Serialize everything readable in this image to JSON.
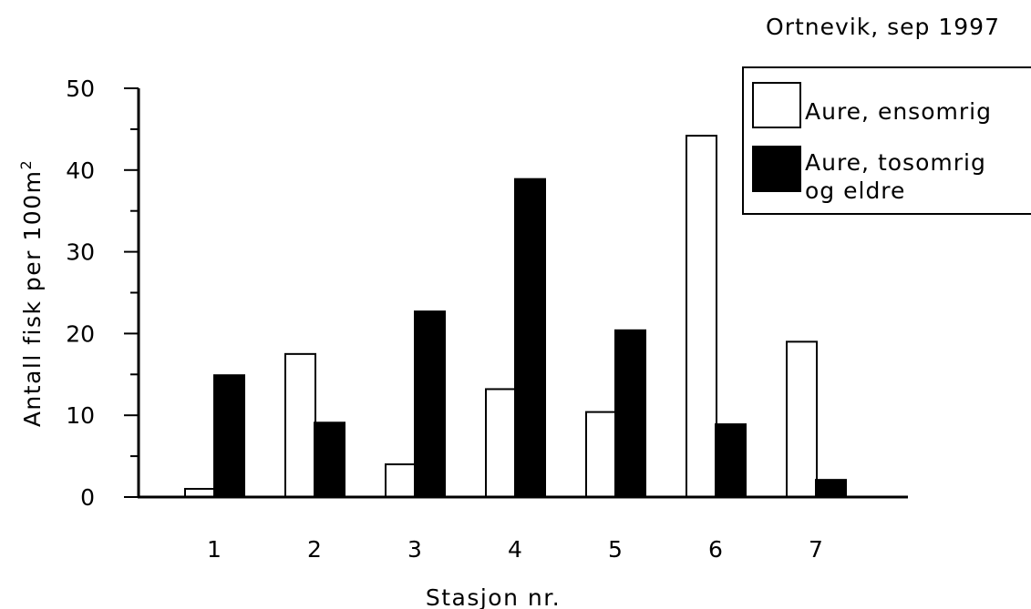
{
  "chart_data": {
    "type": "bar",
    "title": "Ortnevik, sep 1997",
    "xlabel": "Stasjon nr.",
    "ylabel_main": "Antall fisk per 100m",
    "ylabel_sup": "2",
    "ylim": [
      0,
      50
    ],
    "yticks": [
      "0",
      "10",
      "20",
      "30",
      "40",
      "50"
    ],
    "categories": [
      "1",
      "2",
      "3",
      "4",
      "5",
      "6",
      "7"
    ],
    "series": [
      {
        "name": "Aure, ensomrig",
        "fill": "#ffffff",
        "legend_lines": [
          "Aure, ensomrig"
        ],
        "values": [
          1,
          17.5,
          4,
          13.2,
          10.4,
          44.2,
          19
        ]
      },
      {
        "name": "Aure, tosomrig og eldre",
        "fill": "#000000",
        "legend_lines": [
          "Aure, tosomrig",
          "og eldre"
        ],
        "values": [
          14.9,
          9.1,
          22.7,
          38.9,
          20.4,
          8.9,
          2.1
        ]
      }
    ],
    "legend_position": "top-right",
    "grid": false
  }
}
